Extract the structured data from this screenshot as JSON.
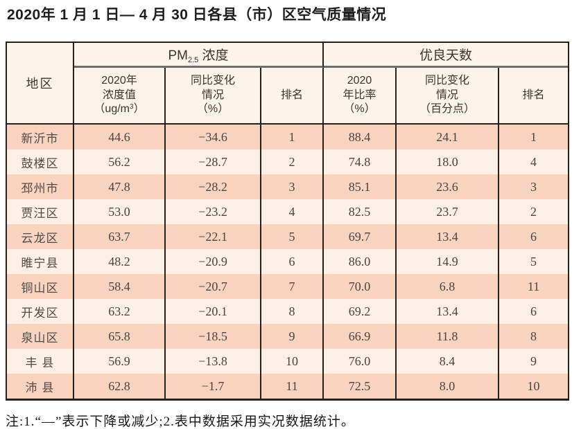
{
  "title": "2020年 1 月 1 日— 4 月 30 日各县（市）区空气质量情况",
  "table": {
    "corner_header": "地区",
    "group_pm": {
      "prefix": "PM",
      "sub": "2.5",
      "suffix": " 浓度"
    },
    "group_days": "优良天数",
    "sub_pm_value": {
      "line1": "2020年",
      "line2": "浓度值",
      "unit_prefix": "（ug/m",
      "unit_sup": "3",
      "unit_suffix": "）"
    },
    "sub_pm_change": {
      "line1": "同比变化",
      "line2": "情况",
      "line3": "（%）"
    },
    "sub_pm_rank": "排名",
    "sub_days_rate": {
      "line1": "2020",
      "line2": "年比率",
      "line3": "（%）"
    },
    "sub_days_change": {
      "line1": "同比变化",
      "line2": "情况",
      "line3": "（百分点）"
    },
    "sub_days_rank": "排名",
    "rows": [
      {
        "region": "新沂市",
        "pm_value": "44.6",
        "pm_change": "−34.6",
        "pm_rank": "1",
        "rate": "88.4",
        "rate_change": "24.1",
        "days_rank": "1"
      },
      {
        "region": "鼓楼区",
        "pm_value": "56.2",
        "pm_change": "−28.7",
        "pm_rank": "2",
        "rate": "74.8",
        "rate_change": "18.0",
        "days_rank": "4"
      },
      {
        "region": "邳州市",
        "pm_value": "47.8",
        "pm_change": "−28.2",
        "pm_rank": "3",
        "rate": "85.1",
        "rate_change": "23.6",
        "days_rank": "3"
      },
      {
        "region": "贾汪区",
        "pm_value": "53.0",
        "pm_change": "−23.2",
        "pm_rank": "4",
        "rate": "82.5",
        "rate_change": "23.7",
        "days_rank": "2"
      },
      {
        "region": "云龙区",
        "pm_value": "63.7",
        "pm_change": "−22.1",
        "pm_rank": "5",
        "rate": "69.7",
        "rate_change": "13.4",
        "days_rank": "6"
      },
      {
        "region": "睢宁县",
        "pm_value": "48.2",
        "pm_change": "−20.9",
        "pm_rank": "6",
        "rate": "86.0",
        "rate_change": "14.9",
        "days_rank": "5"
      },
      {
        "region": "铜山区",
        "pm_value": "58.4",
        "pm_change": "−20.7",
        "pm_rank": "7",
        "rate": "70.0",
        "rate_change": "6.8",
        "days_rank": "11"
      },
      {
        "region": "开发区",
        "pm_value": "63.2",
        "pm_change": "−20.1",
        "pm_rank": "8",
        "rate": "69.2",
        "rate_change": "13.4",
        "days_rank": "6"
      },
      {
        "region": "泉山区",
        "pm_value": "65.8",
        "pm_change": "−18.5",
        "pm_rank": "9",
        "rate": "66.9",
        "rate_change": "11.8",
        "days_rank": "8"
      },
      {
        "region": "丰 县",
        "pm_value": "56.9",
        "pm_change": "−13.8",
        "pm_rank": "10",
        "rate": "76.0",
        "rate_change": "8.4",
        "days_rank": "9"
      },
      {
        "region": "沛 县",
        "pm_value": "62.8",
        "pm_change": "−1.7",
        "pm_rank": "11",
        "rate": "72.5",
        "rate_change": "8.0",
        "days_rank": "10"
      }
    ]
  },
  "note": "注:1.“—”表示下降或减少;2.表中数据采用实况数据统计。",
  "colors": {
    "border_dark": "#26201c",
    "group_underline_gray": "#6e6e6e",
    "header_bg": "#fcf3ea",
    "row_odd_bg": "#f8d3c0",
    "row_even_bg": "#fcf0e8"
  }
}
